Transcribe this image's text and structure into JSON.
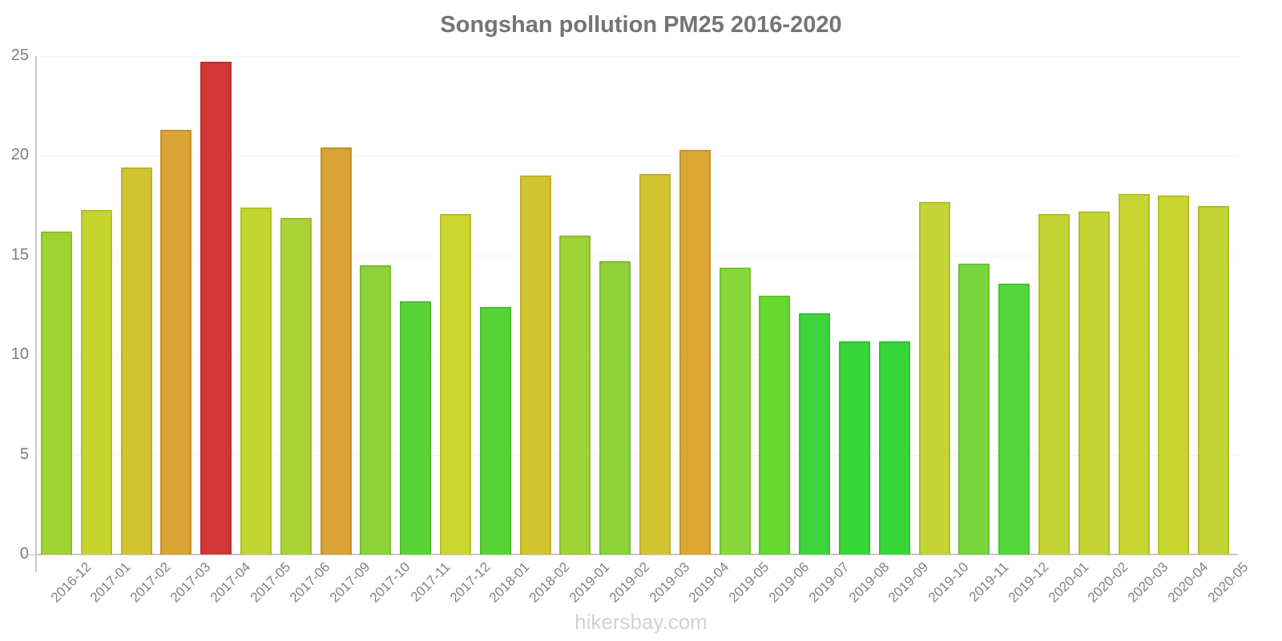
{
  "watermark": "hikersbay.com",
  "chart_data": {
    "type": "bar",
    "title": "Songshan pollution PM25 2016-2020",
    "xlabel": "",
    "ylabel": "",
    "ylim": [
      0,
      25
    ],
    "yticks": [
      0,
      5,
      10,
      15,
      20,
      25
    ],
    "grid": true,
    "legend": false,
    "categories": [
      "2016-12",
      "2017-01",
      "2017-02",
      "2017-03",
      "2017-04",
      "2017-05",
      "2017-06",
      "2017-09",
      "2017-10",
      "2017-11",
      "2017-12",
      "2018-01",
      "2018-02",
      "2019-01",
      "2019-02",
      "2019-03",
      "2019-04",
      "2019-05",
      "2019-06",
      "2019-07",
      "2019-08",
      "2019-09",
      "2019-10",
      "2019-11",
      "2019-12",
      "2020-01",
      "2020-02",
      "2020-03",
      "2020-04",
      "2020-05"
    ],
    "values": [
      16.2,
      17.3,
      19.4,
      21.3,
      24.7,
      17.4,
      16.9,
      20.4,
      14.5,
      12.7,
      17.1,
      12.4,
      19.0,
      16.0,
      14.7,
      19.1,
      20.3,
      14.4,
      13.0,
      12.1,
      10.7,
      10.7,
      17.7,
      14.6,
      13.6,
      17.1,
      17.2,
      18.1,
      18.0,
      17.5
    ],
    "bar_colors": [
      "#9ed334",
      "#c6d62e",
      "#d2c42f",
      "#d9a433",
      "#d43535",
      "#c3d630",
      "#abd433",
      "#d9a433",
      "#8bd337",
      "#57d435",
      "#ccd62e",
      "#57d435",
      "#d2c42f",
      "#9ed334",
      "#8bd337",
      "#d2c42f",
      "#dba833",
      "#87d83a",
      "#66d931",
      "#3ed43c",
      "#36d839",
      "#36d839",
      "#c4d434",
      "#79d63c",
      "#52d639",
      "#c4d434",
      "#c4d434",
      "#c9d630",
      "#c9d630",
      "#c4d434"
    ],
    "value_color_legend": {
      "low_green": "#36d839",
      "mid_yellow_green": "#c4d434",
      "yellow": "#d2c42f",
      "orange": "#d9a433",
      "high_red": "#d43535"
    }
  }
}
